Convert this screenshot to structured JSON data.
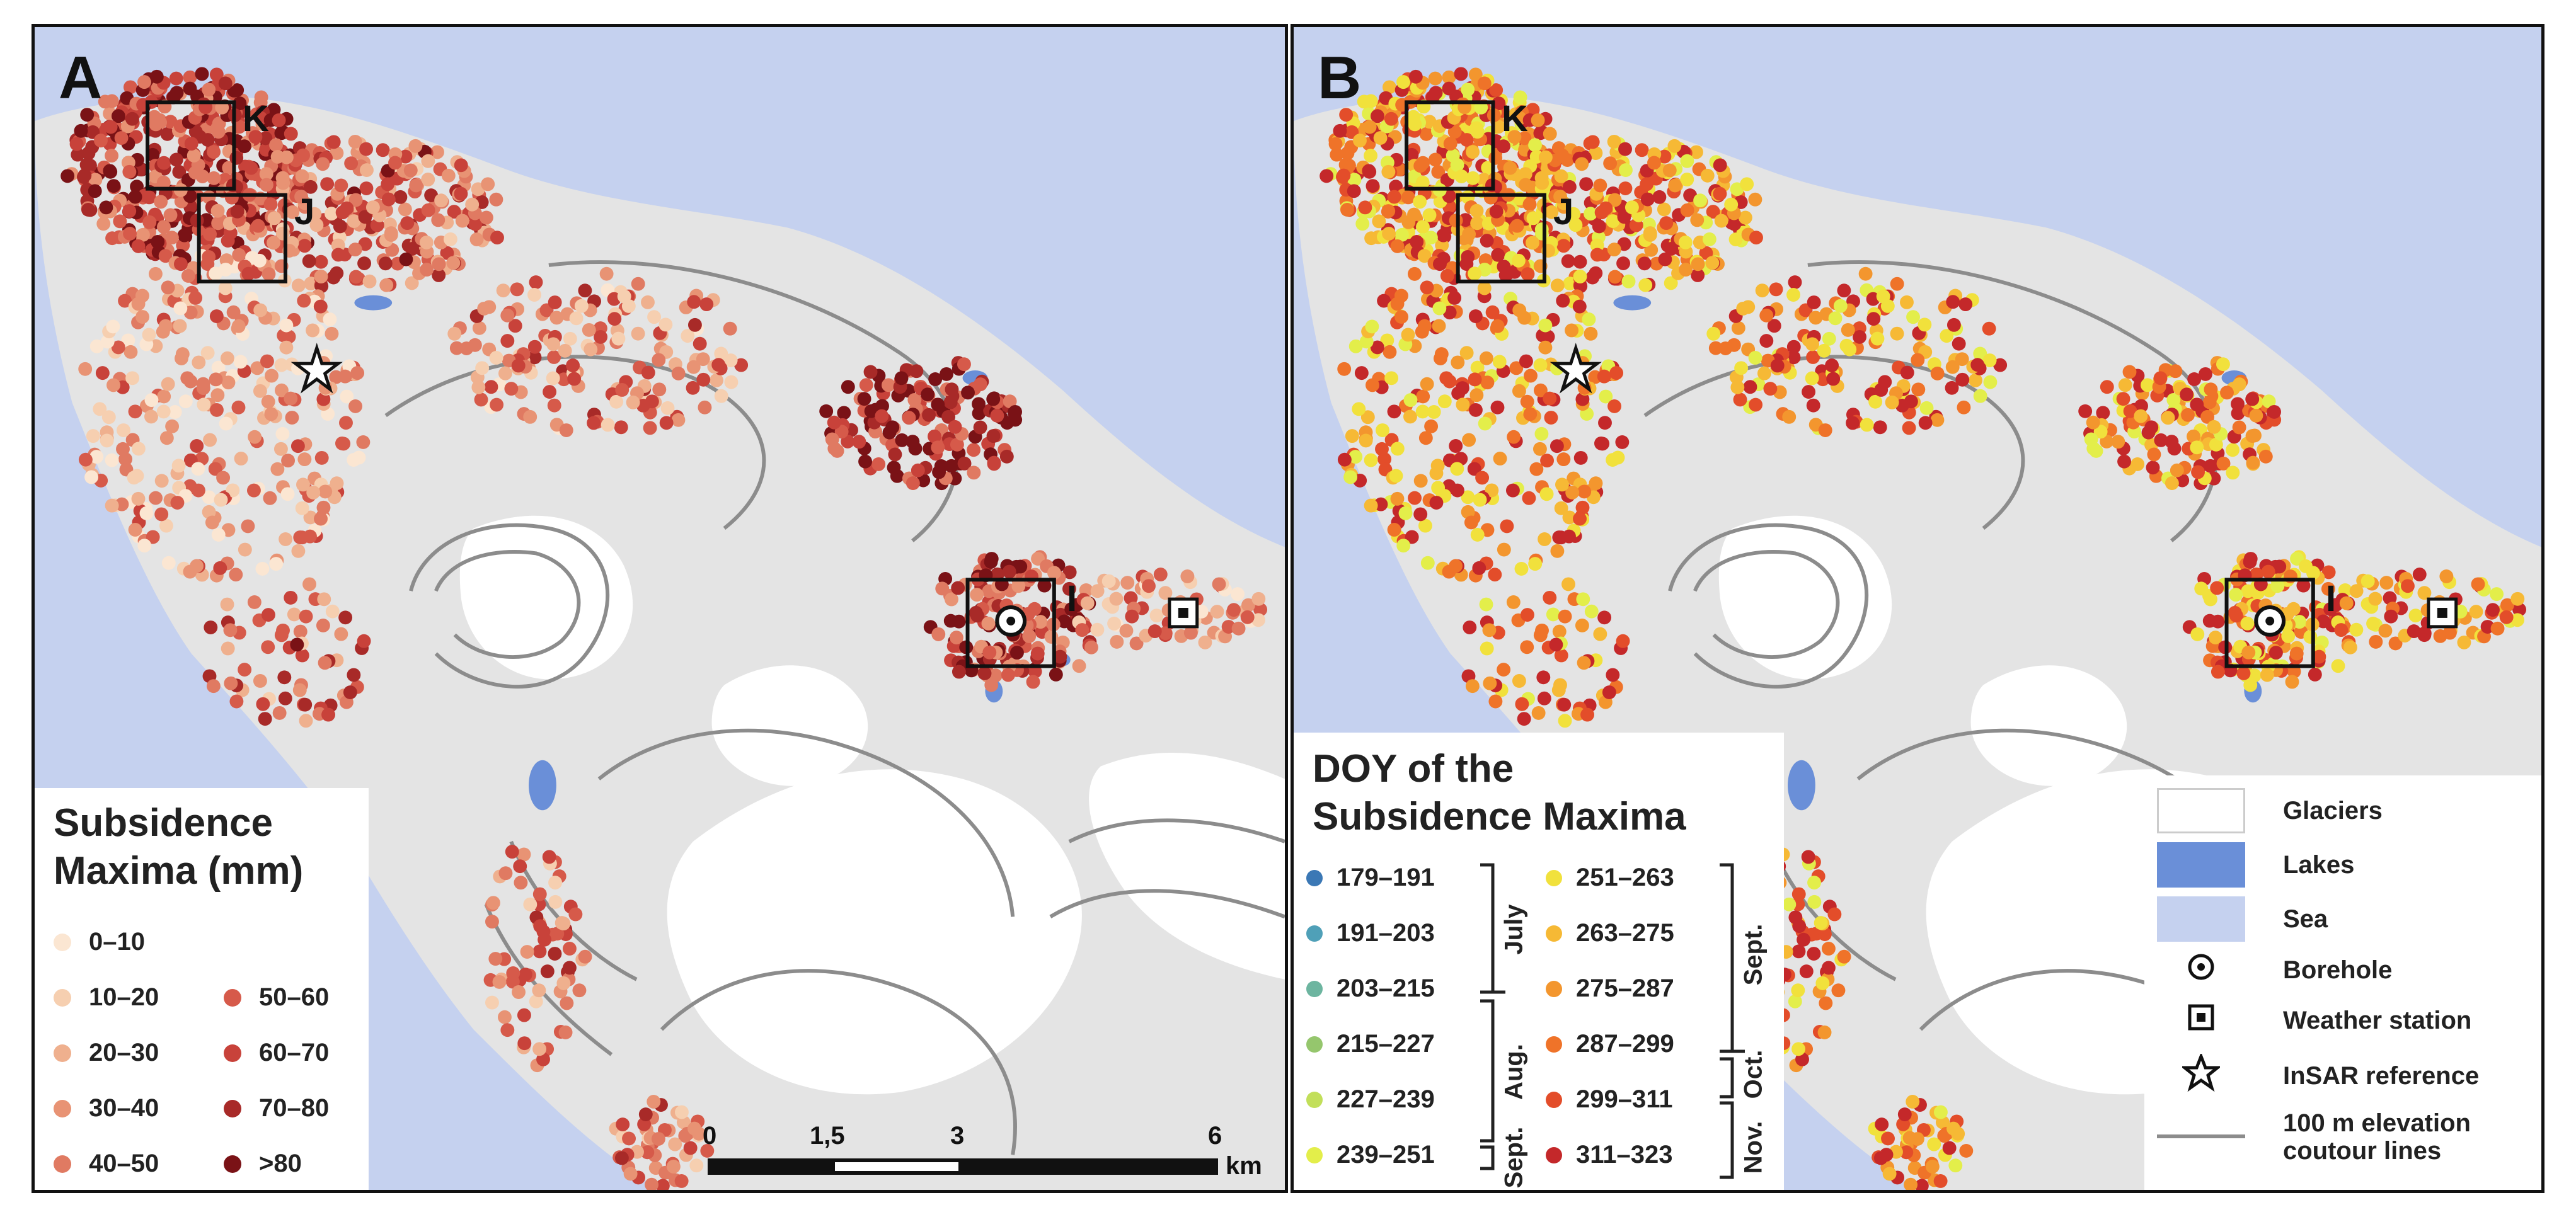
{
  "figure": {
    "panel_a": {
      "letter": "A",
      "boxes": [
        "K",
        "J",
        "I"
      ],
      "legend": {
        "title_line1": "Subsidence",
        "title_line2": "Maxima (mm)",
        "classes": [
          {
            "label": "0–10",
            "color": "#fbe6d2"
          },
          {
            "label": "10–20",
            "color": "#f6cfb0"
          },
          {
            "label": "20–30",
            "color": "#efb08e"
          },
          {
            "label": "30–40",
            "color": "#e89374"
          },
          {
            "label": "40–50",
            "color": "#e07a62"
          },
          {
            "label": "50–60",
            "color": "#d65a4a"
          },
          {
            "label": "60–70",
            "color": "#c8423a"
          },
          {
            "label": "70–80",
            "color": "#a82a28"
          },
          {
            "label": ">80",
            "color": "#7a1216"
          }
        ]
      },
      "scalebar": {
        "ticks": [
          "0",
          "1,5",
          "3",
          "6"
        ],
        "unit": "km"
      }
    },
    "panel_b": {
      "letter": "B",
      "boxes": [
        "K",
        "J",
        "I"
      ],
      "legend": {
        "title_line1": "DOY of the",
        "title_line2": "Subsidence Maxima",
        "classes": [
          {
            "label": "179–191",
            "color": "#3b78b5"
          },
          {
            "label": "191–203",
            "color": "#4fa0b8"
          },
          {
            "label": "203–215",
            "color": "#6db5a0"
          },
          {
            "label": "215–227",
            "color": "#95c66d"
          },
          {
            "label": "227–239",
            "color": "#c2df5a"
          },
          {
            "label": "239–251",
            "color": "#e3ee4a"
          },
          {
            "label": "251–263",
            "color": "#f1e13c"
          },
          {
            "label": "263–275",
            "color": "#f6b935"
          },
          {
            "label": "275–287",
            "color": "#f3962e"
          },
          {
            "label": "287–299",
            "color": "#ef7329"
          },
          {
            "label": "299–311",
            "color": "#e34d2a"
          },
          {
            "label": "311–323",
            "color": "#c4282a"
          }
        ],
        "months": [
          "July",
          "Aug.",
          "Sept.",
          "Sept.",
          "Oct.",
          "Nov."
        ]
      }
    },
    "legend_features": {
      "glaciers": "Glaciers",
      "lakes": "Lakes",
      "sea": "Sea",
      "borehole": "Borehole",
      "weather_station": "Weather station",
      "insar_reference": "InSAR reference",
      "contours_line1": "100 m elevation",
      "contours_line2": "coutour lines"
    },
    "colors": {
      "sea": "#c5d1ef",
      "land": "#e4e4e4",
      "glacier": "#ffffff",
      "lake": "#6a8fd8",
      "contour": "#8c8c8c"
    }
  }
}
